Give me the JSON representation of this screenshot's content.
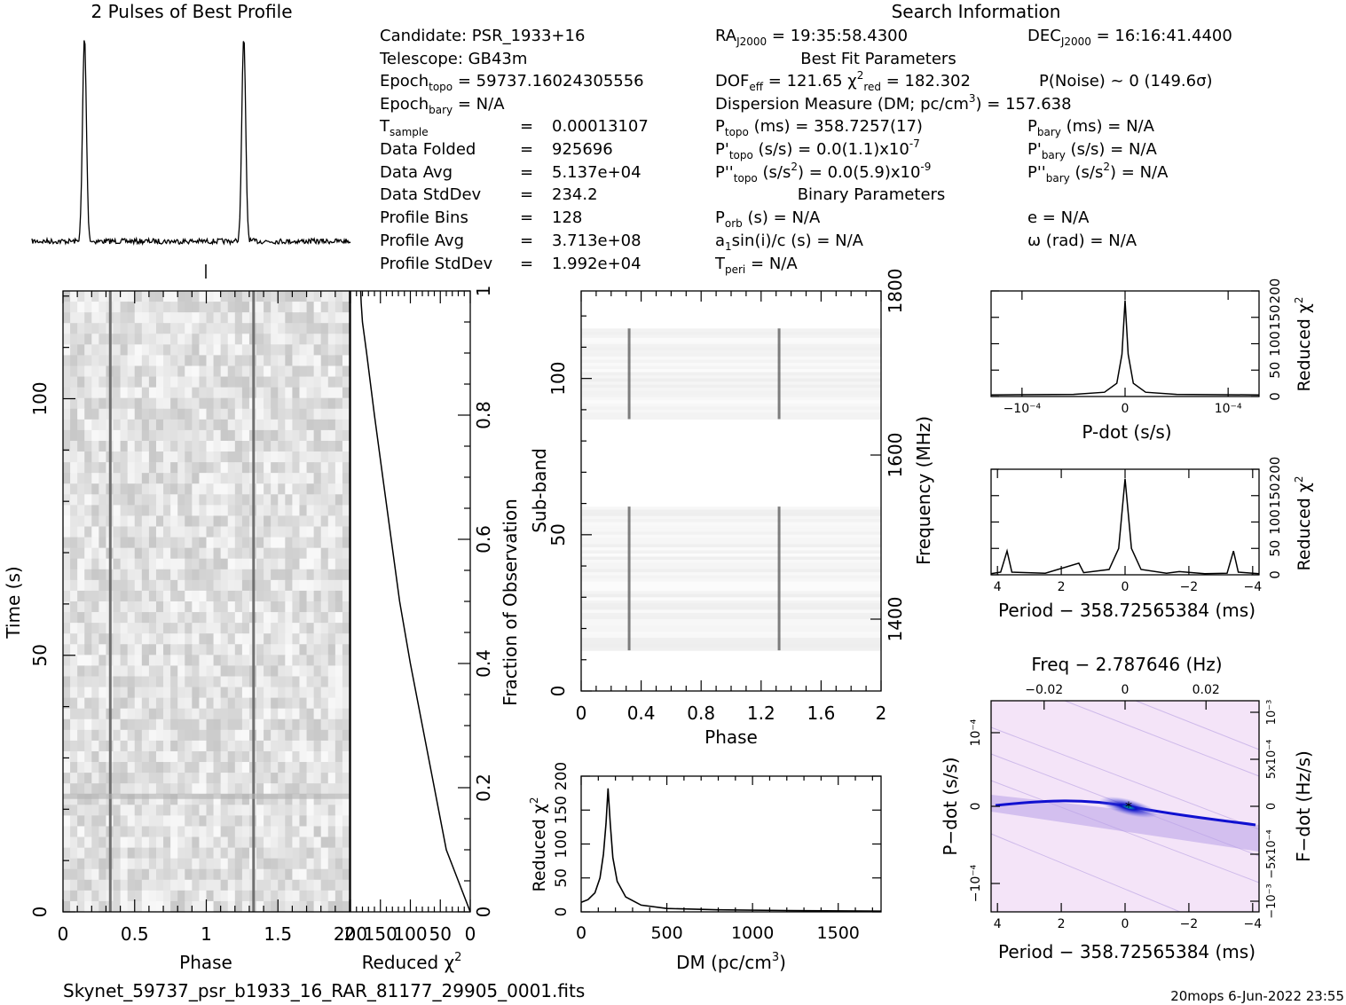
{
  "filename": "Skynet_59737_psr_b1933_16_RAR_81177_29905_0001.fits",
  "footer": "20mops   6-Jun-2022 23:55",
  "profile_title": "2 Pulses of Best Profile",
  "search_title": "Search Information",
  "info": {
    "candidate": "Candidate:  PSR_1933+16",
    "telescope": "Telescope:  GB43m",
    "epoch_topo": "59737.16024305556",
    "epoch_bary": "N/A",
    "t_sample": "0.00013107",
    "data_folded": "925696",
    "data_avg": "5.137e+04",
    "data_stddev": "234.2",
    "profile_bins": "128",
    "profile_avg": "3.713e+08",
    "profile_stddev": "1.992e+04",
    "ra": "19:35:58.4300",
    "dec": "16:16:41.4400",
    "best_fit_header": "Best Fit Parameters",
    "dof_eff": "121.65",
    "chi2_red": "182.302",
    "p_noise": "P(Noise) ~ 0   (149.6σ)",
    "dm": "157.638",
    "p_topo": "358.7257(17)",
    "pd_topo": "0.0(1.1)x10",
    "pd_topo_exp": "-7",
    "pdd_topo": "0.0(5.9)x10",
    "pdd_topo_exp": "-9",
    "p_bary": "N/A",
    "pd_bary": "N/A",
    "pdd_bary": "N/A",
    "binary_header": "Binary Parameters",
    "p_orb": "N/A",
    "a1sini": "N/A",
    "t_peri": "N/A",
    "e": "N/A",
    "omega": "N/A"
  },
  "colors": {
    "ink": "#000000",
    "stripe": "#707070",
    "ppdot_blue": "#1010d0",
    "ppdot_bg": "#f4e4f8"
  },
  "chart_data": [
    {
      "type": "line",
      "title": "2 Pulses of Best Profile",
      "x_range": [
        0,
        2
      ],
      "pulse_phases": [
        0.33,
        1.33
      ],
      "peak_relative_height": 1.0,
      "baseline_noise": "low"
    },
    {
      "type": "heatmap",
      "name": "time-phase",
      "xlabel": "Phase",
      "ylabel": "Time (s)",
      "x_range": [
        0,
        2
      ],
      "y_range": [
        0,
        121
      ],
      "xticks": [
        "0",
        "0.5",
        "1",
        "1.5",
        "2"
      ],
      "yticks": [
        "0",
        "50",
        "100"
      ],
      "pulse_phases": [
        0.33,
        1.33
      ]
    },
    {
      "type": "line",
      "name": "cumulative-chi2",
      "xlabel": "Reduced χ²",
      "ylabel": "Fraction of Observation",
      "x_range": [
        200,
        0
      ],
      "y_range": [
        0,
        1
      ],
      "xticks": [
        "200",
        "150",
        "100",
        "50",
        "0"
      ],
      "yticks": [
        "0",
        "0.2",
        "0.4",
        "0.6",
        "0.8",
        "1"
      ],
      "points": [
        [
          0,
          0
        ],
        [
          20,
          0.05
        ],
        [
          40,
          0.1
        ],
        [
          60,
          0.2
        ],
        [
          80,
          0.3
        ],
        [
          100,
          0.4
        ],
        [
          118,
          0.5
        ],
        [
          132,
          0.6
        ],
        [
          146,
          0.7
        ],
        [
          160,
          0.8
        ],
        [
          173,
          0.9
        ],
        [
          180,
          0.95
        ],
        [
          182,
          0.98
        ],
        [
          183,
          1
        ]
      ]
    },
    {
      "type": "heatmap",
      "name": "subband-phase",
      "xlabel": "Phase",
      "ylabel": "Sub-band",
      "y2label": "Frequency (MHz)",
      "x_range": [
        0,
        2
      ],
      "y_range": [
        0,
        128
      ],
      "xticks": [
        "0",
        "0.4",
        "0.8",
        "1.2",
        "1.6",
        "2"
      ],
      "yticks": [
        "0",
        "50",
        "100"
      ],
      "y2ticks": [
        "1400",
        "1600",
        "1800"
      ],
      "filled_bands": [
        [
          13,
          59
        ],
        [
          87,
          116
        ]
      ],
      "pulse_phases": [
        0.32,
        1.32
      ]
    },
    {
      "type": "line",
      "name": "dm-chi2",
      "xlabel": "DM (pc/cm³)",
      "ylabel": "Reduced χ²",
      "x_range": [
        0,
        1750
      ],
      "y_range": [
        0,
        200
      ],
      "xticks": [
        "0",
        "500",
        "1000",
        "1500"
      ],
      "yticks": [
        "0",
        "50",
        "100",
        "150",
        "200"
      ],
      "points": [
        [
          0,
          14
        ],
        [
          40,
          18
        ],
        [
          80,
          28
        ],
        [
          110,
          50
        ],
        [
          130,
          85
        ],
        [
          145,
          130
        ],
        [
          157,
          182
        ],
        [
          170,
          130
        ],
        [
          185,
          80
        ],
        [
          210,
          45
        ],
        [
          260,
          22
        ],
        [
          350,
          10
        ],
        [
          500,
          5
        ],
        [
          800,
          3
        ],
        [
          1200,
          2
        ],
        [
          1750,
          1
        ]
      ]
    },
    {
      "type": "line",
      "name": "pdot-chi2",
      "xlabel": "P-dot (s/s)",
      "ylabel": "Reduced χ²",
      "x_range": [
        -0.00013,
        0.00013
      ],
      "y_range": [
        0,
        200
      ],
      "xticks": [
        "10⁻⁴",
        "0",
        "−10⁻⁴"
      ],
      "yticks": [
        "0",
        "50",
        "100",
        "150",
        "200"
      ],
      "points": [
        [
          -0.00013,
          3
        ],
        [
          -5e-05,
          4
        ],
        [
          -2e-05,
          8
        ],
        [
          -8e-06,
          25
        ],
        [
          -3e-06,
          80
        ],
        [
          0,
          182
        ],
        [
          3e-06,
          80
        ],
        [
          8e-06,
          25
        ],
        [
          2e-05,
          8
        ],
        [
          5e-05,
          4
        ],
        [
          0.00013,
          3
        ]
      ]
    },
    {
      "type": "line",
      "name": "period-chi2",
      "xlabel": "Period − 358.72565384 (ms)",
      "ylabel": "Reduced χ²",
      "x_range": [
        4.2,
        -4.2
      ],
      "y_range": [
        0,
        200
      ],
      "xticks": [
        "4",
        "2",
        "0",
        "−2",
        "−4"
      ],
      "yticks": [
        "0",
        "50",
        "100",
        "150",
        "200"
      ],
      "points": [
        [
          4.2,
          2
        ],
        [
          3.9,
          5
        ],
        [
          3.7,
          45
        ],
        [
          3.55,
          5
        ],
        [
          2.5,
          3
        ],
        [
          1.45,
          22
        ],
        [
          1.3,
          4
        ],
        [
          0.5,
          10
        ],
        [
          0.2,
          50
        ],
        [
          0,
          182
        ],
        [
          -0.2,
          50
        ],
        [
          -0.5,
          10
        ],
        [
          -1.3,
          3
        ],
        [
          -1.7,
          6
        ],
        [
          -2.5,
          2
        ],
        [
          -3.2,
          3
        ],
        [
          -3.4,
          45
        ],
        [
          -3.55,
          5
        ],
        [
          -4.2,
          2
        ]
      ]
    },
    {
      "type": "heatmap",
      "name": "p-pdot",
      "title": "Freq − 2.787646 (Hz)",
      "xlabel": "Period − 358.72565384 (ms)",
      "ylabel": "P−dot (s/s)",
      "y2label": "F−dot (Hz/s)",
      "x_range": [
        4.2,
        -4.2
      ],
      "xticks": [
        "4",
        "2",
        "0",
        "−2",
        "−4"
      ],
      "top_ticks": [
        "−0.02",
        "0",
        "0.02"
      ],
      "yticks": [
        "10⁻⁴",
        "0",
        "−10⁻⁴"
      ],
      "y2ticks": [
        "−10⁻³",
        "−5x10⁻⁴",
        "0",
        "5x10⁻⁴",
        "10⁻³"
      ],
      "best": [
        0,
        0
      ]
    }
  ]
}
